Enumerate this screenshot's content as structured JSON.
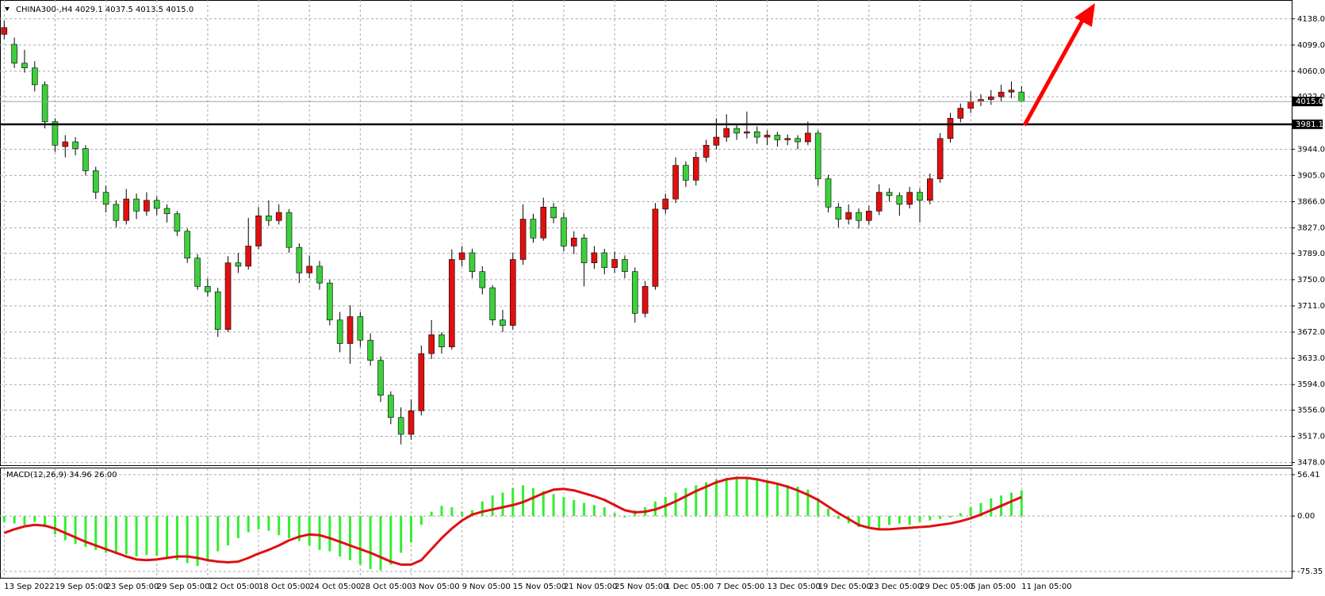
{
  "chart_data": [
    {
      "type": "candlestick",
      "title": "CHINA300-,H4  4029.1 4037.5 4013.5 4015.0",
      "categories": [
        "13 Sep 2022",
        null,
        null,
        null,
        null,
        "19 Sep 05:00",
        null,
        null,
        null,
        null,
        "23 Sep 05:00",
        null,
        null,
        null,
        null,
        "29 Sep 05:00",
        null,
        null,
        null,
        null,
        "12 Oct 05:00",
        null,
        null,
        null,
        null,
        "18 Oct 05:00",
        null,
        null,
        null,
        null,
        "24 Oct 05:00",
        null,
        null,
        null,
        null,
        "28 Oct 05:00",
        null,
        null,
        null,
        null,
        "3 Nov 05:00",
        null,
        null,
        null,
        null,
        "9 Nov 05:00",
        null,
        null,
        null,
        null,
        "15 Nov 05:00",
        null,
        null,
        null,
        null,
        "21 Nov 05:00",
        null,
        null,
        null,
        null,
        "25 Nov 05:00",
        null,
        null,
        null,
        null,
        "1 Dec 05:00",
        null,
        null,
        null,
        null,
        "7 Dec 05:00",
        null,
        null,
        null,
        null,
        "13 Dec 05:00",
        null,
        null,
        null,
        null,
        "19 Dec 05:00",
        null,
        null,
        null,
        null,
        "23 Dec 05:00",
        null,
        null,
        null,
        null,
        "29 Dec 05:00",
        null,
        null,
        null,
        null,
        "5 Jan 05:00",
        null,
        null,
        null,
        null,
        "11 Jan 05:00"
      ],
      "ohlc": [
        [
          4115,
          4135,
          4108,
          4125
        ],
        [
          4100,
          4110,
          4065,
          4072
        ],
        [
          4072,
          4092,
          4058,
          4065
        ],
        [
          4065,
          4075,
          4030,
          4040
        ],
        [
          4040,
          4045,
          3975,
          3985
        ],
        [
          3985,
          3990,
          3940,
          3950
        ],
        [
          3948,
          3965,
          3932,
          3955
        ],
        [
          3955,
          3962,
          3935,
          3945
        ],
        [
          3945,
          3950,
          3905,
          3912
        ],
        [
          3912,
          3918,
          3870,
          3880
        ],
        [
          3880,
          3890,
          3850,
          3862
        ],
        [
          3862,
          3868,
          3828,
          3838
        ],
        [
          3838,
          3885,
          3832,
          3870
        ],
        [
          3870,
          3878,
          3840,
          3852
        ],
        [
          3852,
          3880,
          3845,
          3868
        ],
        [
          3868,
          3874,
          3846,
          3856
        ],
        [
          3856,
          3862,
          3835,
          3848
        ],
        [
          3848,
          3852,
          3815,
          3822
        ],
        [
          3822,
          3826,
          3775,
          3782
        ],
        [
          3782,
          3788,
          3735,
          3740
        ],
        [
          3740,
          3752,
          3725,
          3732
        ],
        [
          3732,
          3738,
          3665,
          3676
        ],
        [
          3676,
          3785,
          3672,
          3775
        ],
        [
          3775,
          3790,
          3760,
          3770
        ],
        [
          3770,
          3842,
          3765,
          3800
        ],
        [
          3800,
          3858,
          3795,
          3845
        ],
        [
          3845,
          3868,
          3830,
          3838
        ],
        [
          3838,
          3862,
          3832,
          3850
        ],
        [
          3850,
          3855,
          3790,
          3798
        ],
        [
          3798,
          3804,
          3745,
          3760
        ],
        [
          3760,
          3786,
          3752,
          3770
        ],
        [
          3770,
          3778,
          3735,
          3745
        ],
        [
          3745,
          3750,
          3682,
          3690
        ],
        [
          3690,
          3702,
          3642,
          3655
        ],
        [
          3655,
          3712,
          3625,
          3695
        ],
        [
          3695,
          3702,
          3650,
          3660
        ],
        [
          3660,
          3670,
          3622,
          3630
        ],
        [
          3630,
          3636,
          3568,
          3578
        ],
        [
          3578,
          3584,
          3535,
          3545
        ],
        [
          3545,
          3560,
          3505,
          3520
        ],
        [
          3520,
          3572,
          3512,
          3555
        ],
        [
          3555,
          3652,
          3548,
          3640
        ],
        [
          3640,
          3690,
          3632,
          3668
        ],
        [
          3668,
          3672,
          3640,
          3650
        ],
        [
          3650,
          3795,
          3646,
          3780
        ],
        [
          3780,
          3800,
          3770,
          3790
        ],
        [
          3790,
          3796,
          3752,
          3762
        ],
        [
          3762,
          3770,
          3728,
          3738
        ],
        [
          3738,
          3742,
          3682,
          3690
        ],
        [
          3690,
          3705,
          3672,
          3682
        ],
        [
          3682,
          3790,
          3676,
          3780
        ],
        [
          3780,
          3862,
          3772,
          3840
        ],
        [
          3840,
          3848,
          3805,
          3812
        ],
        [
          3812,
          3872,
          3808,
          3858
        ],
        [
          3858,
          3864,
          3834,
          3842
        ],
        [
          3842,
          3850,
          3792,
          3800
        ],
        [
          3800,
          3822,
          3788,
          3812
        ],
        [
          3812,
          3818,
          3740,
          3775
        ],
        [
          3775,
          3800,
          3766,
          3790
        ],
        [
          3790,
          3796,
          3758,
          3768
        ],
        [
          3768,
          3792,
          3760,
          3780
        ],
        [
          3780,
          3786,
          3752,
          3762
        ],
        [
          3762,
          3768,
          3686,
          3700
        ],
        [
          3700,
          3748,
          3694,
          3740
        ],
        [
          3740,
          3864,
          3735,
          3855
        ],
        [
          3855,
          3878,
          3848,
          3870
        ],
        [
          3870,
          3932,
          3864,
          3920
        ],
        [
          3920,
          3926,
          3888,
          3898
        ],
        [
          3898,
          3940,
          3890,
          3932
        ],
        [
          3932,
          3958,
          3925,
          3950
        ],
        [
          3950,
          3990,
          3944,
          3962
        ],
        [
          3962,
          3996,
          3955,
          3975
        ],
        [
          3975,
          3982,
          3958,
          3968
        ],
        [
          3968,
          4000,
          3960,
          3970
        ],
        [
          3970,
          3978,
          3952,
          3962
        ],
        [
          3962,
          3972,
          3950,
          3965
        ],
        [
          3965,
          3970,
          3948,
          3958
        ],
        [
          3958,
          3966,
          3950,
          3960
        ],
        [
          3960,
          3965,
          3944,
          3955
        ],
        [
          3955,
          3985,
          3950,
          3968
        ],
        [
          3968,
          3972,
          3890,
          3900
        ],
        [
          3900,
          3906,
          3850,
          3858
        ],
        [
          3858,
          3864,
          3828,
          3840
        ],
        [
          3840,
          3862,
          3832,
          3850
        ],
        [
          3850,
          3856,
          3826,
          3838
        ],
        [
          3838,
          3860,
          3832,
          3852
        ],
        [
          3852,
          3892,
          3846,
          3880
        ],
        [
          3880,
          3886,
          3866,
          3875
        ],
        [
          3875,
          3880,
          3845,
          3862
        ],
        [
          3862,
          3888,
          3856,
          3880
        ],
        [
          3880,
          3886,
          3835,
          3868
        ],
        [
          3868,
          3908,
          3862,
          3900
        ],
        [
          3900,
          3968,
          3894,
          3960
        ],
        [
          3960,
          3998,
          3954,
          3990
        ],
        [
          3990,
          4012,
          3984,
          4005
        ],
        [
          4005,
          4030,
          3998,
          4015
        ],
        [
          4015,
          4026,
          4008,
          4018
        ],
        [
          4018,
          4032,
          4010,
          4022
        ],
        [
          4022,
          4040,
          4015,
          4029
        ],
        [
          4029,
          4045,
          4020,
          4032
        ],
        [
          4029.1,
          4037.5,
          4013.5,
          4015.0
        ]
      ],
      "up_color": "#e01010",
      "down_color": "#3cd03c",
      "ylim": [
        3474,
        4166
      ],
      "yticks": [
        {
          "value": 4138,
          "label": "4138.0"
        },
        {
          "value": 4099,
          "label": "4099.0"
        },
        {
          "value": 4060,
          "label": "4060.0"
        },
        {
          "value": 4022,
          "label": "4022.0"
        },
        {
          "value": 3944,
          "label": "3944.0"
        },
        {
          "value": 3905,
          "label": "3905.0"
        },
        {
          "value": 3866,
          "label": "3866.0"
        },
        {
          "value": 3827,
          "label": "3827.0"
        },
        {
          "value": 3789,
          "label": "3789.0"
        },
        {
          "value": 3750,
          "label": "3750.0"
        },
        {
          "value": 3711,
          "label": "3711.0"
        },
        {
          "value": 3672,
          "label": "3672.0"
        },
        {
          "value": 3633,
          "label": "3633.0"
        },
        {
          "value": 3594,
          "label": "3594.0"
        },
        {
          "value": 3556,
          "label": "3556.0"
        },
        {
          "value": 3517,
          "label": "3517.0"
        },
        {
          "value": 3478,
          "label": "3478.0"
        }
      ],
      "grid": true,
      "price_line": {
        "value": 4015,
        "label": "4015.0"
      },
      "level": 3981.1
    },
    {
      "type": "macd",
      "title": "MACD(12,26,9) 34.96 26.00",
      "histogram": [
        -8,
        -10,
        -12,
        -8,
        -15,
        -25,
        -33,
        -38,
        -42,
        -46,
        -50,
        -52,
        -52,
        -55,
        -53,
        -54,
        -58,
        -60,
        -64,
        -68,
        -62,
        -48,
        -40,
        -30,
        -22,
        -18,
        -20,
        -26,
        -30,
        -34,
        -40,
        -46,
        -48,
        -55,
        -60,
        -66,
        -72,
        -74,
        -66,
        -50,
        -36,
        -12,
        6,
        14,
        12,
        6,
        8,
        20,
        28,
        32,
        38,
        42,
        38,
        34,
        30,
        26,
        22,
        18,
        15,
        12,
        4,
        -2,
        8,
        12,
        20,
        26,
        32,
        38,
        42,
        46,
        50,
        52,
        54,
        52,
        50,
        48,
        45,
        42,
        40,
        36,
        24,
        10,
        -4,
        -10,
        -15,
        -16,
        -18,
        -12,
        -10,
        -12,
        -8,
        -6,
        -4,
        -2,
        4,
        12,
        18,
        24,
        28,
        32,
        34.96
      ],
      "signal": [
        -23,
        -18,
        -14,
        -12,
        -13,
        -17,
        -23,
        -29,
        -35,
        -40,
        -45,
        -50,
        -55,
        -59,
        -60,
        -59,
        -57,
        -55,
        -55,
        -57,
        -60,
        -62,
        -63,
        -62,
        -57,
        -51,
        -46,
        -40,
        -33,
        -28,
        -25,
        -26,
        -30,
        -35,
        -40,
        -45,
        -50,
        -56,
        -62,
        -66,
        -66,
        -60,
        -45,
        -30,
        -17,
        -6,
        2,
        6,
        9,
        12,
        15,
        19,
        25,
        31,
        36,
        37,
        35,
        31,
        27,
        22,
        15,
        8,
        5,
        6,
        9,
        14,
        20,
        27,
        34,
        40,
        46,
        50,
        52,
        52,
        50,
        47,
        44,
        40,
        35,
        29,
        22,
        13,
        4,
        -4,
        -12,
        -16,
        -18,
        -18,
        -17,
        -16,
        -15,
        -14,
        -12,
        -10,
        -7,
        -3,
        2,
        8,
        14,
        20,
        26
      ],
      "histogram_color": "#33ee33",
      "signal_color": "#e01010",
      "ylim": [
        -84,
        66
      ],
      "yticks": [
        56.41,
        {
          "value": 0,
          "label": "0.00"
        },
        -75.35
      ]
    }
  ]
}
